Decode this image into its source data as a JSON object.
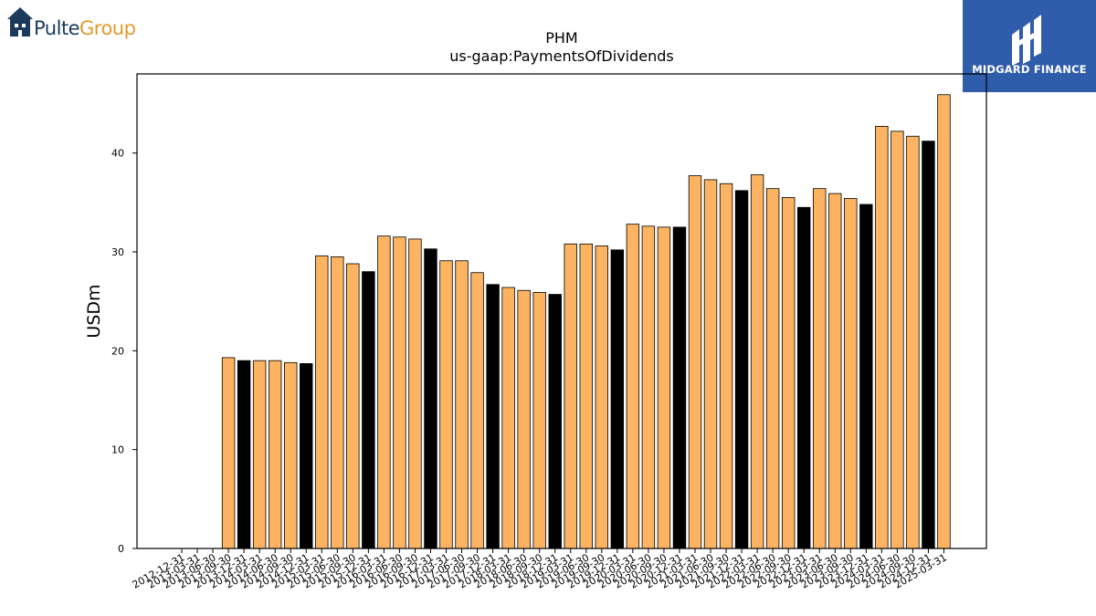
{
  "company_logo": {
    "part1": "Pulte",
    "part2": "Group"
  },
  "brand_badge": {
    "name": "MIDGARD FINANCE",
    "colors": {
      "background": "#2f5cab",
      "text": "#ffffff"
    }
  },
  "chart_data": {
    "type": "bar",
    "title": "PHM",
    "subtitle": "us-gaap:PaymentsOfDividends",
    "xlabel": "",
    "ylabel": "USDm",
    "ylim": [
      0,
      48
    ],
    "yticks": [
      0,
      10,
      20,
      30,
      40
    ],
    "grid": false,
    "colors": {
      "quarter": "#FDB462",
      "year_end": "#000000",
      "edge": "#000000"
    },
    "categories": [
      "2012-12-31",
      "2013-03-31",
      "2013-06-30",
      "2013-09-30",
      "2013-12-31",
      "2014-03-31",
      "2014-06-30",
      "2014-09-30",
      "2014-12-31",
      "2015-03-31",
      "2015-06-30",
      "2015-09-30",
      "2015-12-31",
      "2016-03-31",
      "2016-06-30",
      "2016-09-30",
      "2016-12-31",
      "2017-03-31",
      "2017-06-30",
      "2017-09-30",
      "2017-12-31",
      "2018-03-31",
      "2018-06-30",
      "2018-09-30",
      "2018-12-31",
      "2019-03-31",
      "2019-06-30",
      "2019-09-30",
      "2019-12-31",
      "2020-03-31",
      "2020-06-30",
      "2020-09-30",
      "2020-12-31",
      "2021-03-31",
      "2021-06-30",
      "2021-09-30",
      "2021-12-31",
      "2022-03-31",
      "2022-06-30",
      "2022-09-30",
      "2022-12-31",
      "2023-03-31",
      "2023-06-30",
      "2023-09-30",
      "2023-12-31",
      "2024-03-31",
      "2024-06-30",
      "2024-09-30",
      "2024-12-31",
      "2025-03-31"
    ],
    "values": [
      null,
      null,
      null,
      19.3,
      19.0,
      19.0,
      19.0,
      18.8,
      18.7,
      29.6,
      29.5,
      28.8,
      28.0,
      31.6,
      31.5,
      31.3,
      30.3,
      29.1,
      29.1,
      27.9,
      26.7,
      26.4,
      26.1,
      25.9,
      25.7,
      30.8,
      30.8,
      30.6,
      30.2,
      32.8,
      32.6,
      32.5,
      32.5,
      37.7,
      37.3,
      36.9,
      36.2,
      37.8,
      36.4,
      35.5,
      34.5,
      36.4,
      35.9,
      35.4,
      34.8,
      42.7,
      42.2,
      41.7,
      41.2,
      45.9
    ]
  }
}
